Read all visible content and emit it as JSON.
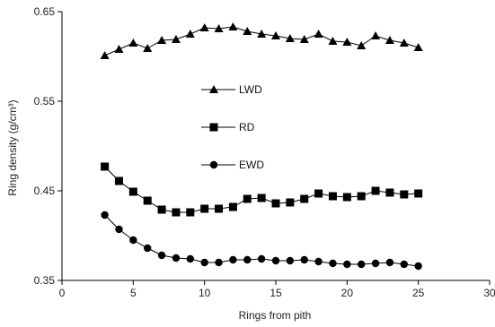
{
  "chart_data": {
    "type": "line",
    "xlabel": "Rings from pith",
    "ylabel": "Ring density (g/cm³)",
    "xlim": [
      0,
      30
    ],
    "ylim": [
      0.35,
      0.65
    ],
    "x_ticks": [
      "0",
      "5",
      "10",
      "15",
      "20",
      "25",
      "30"
    ],
    "y_ticks": [
      "0.35",
      "0.45",
      "0.55",
      "0.65"
    ],
    "grid": false,
    "legend_position": "center-left",
    "x": [
      3,
      4,
      5,
      6,
      7,
      8,
      9,
      10,
      11,
      12,
      13,
      14,
      15,
      16,
      17,
      18,
      19,
      20,
      21,
      22,
      23,
      24,
      25
    ],
    "series": [
      {
        "name": "LWD",
        "marker": "triangle",
        "values": [
          0.601,
          0.608,
          0.615,
          0.609,
          0.618,
          0.619,
          0.625,
          0.632,
          0.631,
          0.633,
          0.628,
          0.625,
          0.623,
          0.62,
          0.619,
          0.625,
          0.617,
          0.616,
          0.612,
          0.623,
          0.618,
          0.615,
          0.61
        ]
      },
      {
        "name": "RD",
        "marker": "square",
        "values": [
          0.477,
          0.461,
          0.449,
          0.439,
          0.429,
          0.426,
          0.426,
          0.43,
          0.43,
          0.432,
          0.441,
          0.442,
          0.436,
          0.437,
          0.441,
          0.447,
          0.444,
          0.443,
          0.444,
          0.45,
          0.448,
          0.446,
          0.447
        ]
      },
      {
        "name": "EWD",
        "marker": "circle",
        "values": [
          0.423,
          0.407,
          0.395,
          0.386,
          0.378,
          0.375,
          0.374,
          0.37,
          0.37,
          0.373,
          0.373,
          0.374,
          0.372,
          0.372,
          0.373,
          0.371,
          0.369,
          0.368,
          0.368,
          0.369,
          0.37,
          0.368,
          0.366
        ]
      }
    ]
  }
}
